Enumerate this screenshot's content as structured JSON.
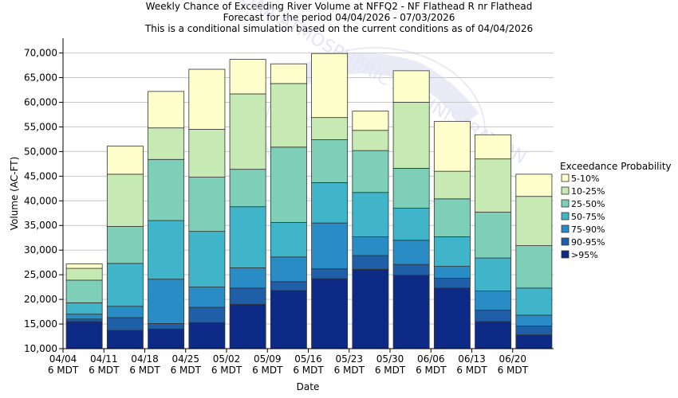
{
  "chart_data": {
    "type": "bar",
    "title_lines": [
      "Weekly Chance of Exceeding River Volume at NFFQ2 - NF Flathead R nr Flathead",
      "Forecast for the period 04/04/2026 - 07/03/2026",
      "This is a conditional simulation based on the current conditions as of 04/04/2026"
    ],
    "watermark": "NOAA ATMOSPHERIC ADMINISTRATION",
    "xlabel": "Date",
    "ylabel": "Volume (AC-FT)",
    "ylim": [
      10000,
      73000
    ],
    "yticks": [
      "10,000",
      "15,000",
      "20,000",
      "25,000",
      "30,000",
      "35,000",
      "40,000",
      "45,000",
      "50,000",
      "55,000",
      "60,000",
      "65,000",
      "70,000"
    ],
    "categories": [
      [
        "04/04",
        "6 MDT"
      ],
      [
        "04/11",
        "6 MDT"
      ],
      [
        "04/18",
        "6 MDT"
      ],
      [
        "04/25",
        "6 MDT"
      ],
      [
        "05/02",
        "6 MDT"
      ],
      [
        "05/09",
        "6 MDT"
      ],
      [
        "05/16",
        "6 MDT"
      ],
      [
        "05/23",
        "6 MDT"
      ],
      [
        "05/30",
        "6 MDT"
      ],
      [
        "06/06",
        "6 MDT"
      ],
      [
        "06/13",
        "6 MDT"
      ],
      [
        "06/20",
        "6 MDT"
      ]
    ],
    "grid": "horizontal",
    "legend_title": "Exceedance Probability",
    "legend_placement": "right",
    "series": [
      {
        "name": ">95%",
        "color": "#0e2a87",
        "values": [
          15500,
          13700,
          14000,
          15300,
          19000,
          21800,
          24200,
          26100,
          24900,
          22300,
          15500,
          12800
        ]
      },
      {
        "name": "90-95%",
        "color": "#1e5fa8",
        "values": [
          16000,
          16300,
          15100,
          18400,
          22300,
          23600,
          26200,
          28900,
          27100,
          24300,
          17800,
          14600
        ]
      },
      {
        "name": "75-90%",
        "color": "#2a8cc4",
        "values": [
          17000,
          18600,
          24100,
          22500,
          26400,
          28600,
          35500,
          32700,
          32000,
          26700,
          21700,
          16800
        ]
      },
      {
        "name": "50-75%",
        "color": "#40b4c8",
        "values": [
          19300,
          27300,
          36000,
          33800,
          38800,
          35600,
          43700,
          41700,
          38500,
          32700,
          28400,
          22300
        ]
      },
      {
        "name": "25-50%",
        "color": "#7ecfb8",
        "values": [
          23900,
          34800,
          48400,
          44800,
          46400,
          50900,
          52400,
          50200,
          46600,
          40400,
          37700,
          30900
        ]
      },
      {
        "name": "10-25%",
        "color": "#c7e9b4",
        "values": [
          26300,
          45400,
          54800,
          54500,
          61700,
          63800,
          56900,
          54300,
          60000,
          46000,
          48500,
          40900
        ]
      },
      {
        "name": "5-10%",
        "color": "#ffffcc",
        "values": [
          27200,
          51100,
          62200,
          66700,
          68700,
          67800,
          69900,
          58200,
          66400,
          56100,
          53400,
          45400
        ]
      }
    ]
  }
}
